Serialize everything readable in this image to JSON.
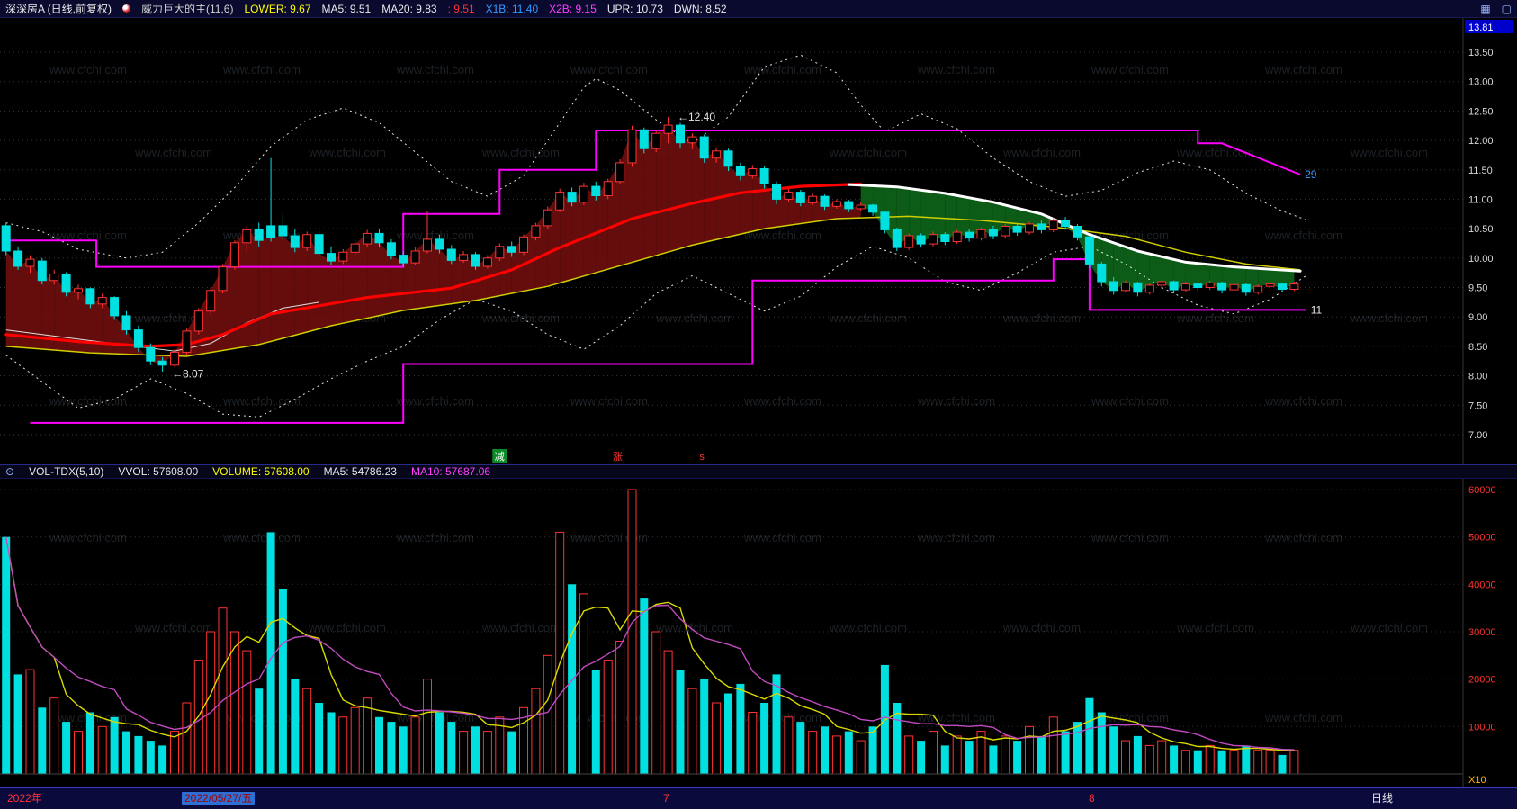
{
  "header": {
    "title": "深深房A (日线,前复权)",
    "indicator": "威力巨大的主(11,6)",
    "lower": "LOWER: 9.67",
    "ma5": "MA5: 9.51",
    "ma20": "MA20: 9.83",
    "extra": ": 9.51",
    "x1b": "X1B: 11.40",
    "x2b": "X2B: 9.15",
    "upr": "UPR: 10.73",
    "dwn": "DWN: 8.52",
    "icon_left": "▦",
    "icon_right": "▢"
  },
  "divider": {
    "collapse_icon": "⊙",
    "name": "VOL-TDX(5,10)",
    "vvol": "VVOL: 57608.00",
    "volume": "VOLUME: 57608.00",
    "ma5": "MA5: 54786.23",
    "ma10": "MA10: 57687.06"
  },
  "bottom_bar": {
    "year": "2022年",
    "date": "2022/05/27/五",
    "month7": "7",
    "month8": "8",
    "period": "日线"
  },
  "watermark": {
    "text": "www.cfchi.com"
  },
  "colors": {
    "up": "#ff3232",
    "down": "#00e0e0",
    "maroon_fill": "#6e0e0e",
    "green_fill": "#0d6318",
    "magenta": "#ff00ff",
    "yellow_line": "#cfcf00",
    "red_line": "#ff0000",
    "white_line": "#ffffff",
    "axis_price": "#d8d8d8",
    "axis_volume": "#ff3232",
    "top_box_bg": "#0000cc"
  },
  "chart_data": {
    "type": "candlestick",
    "title": "深深房A 日线 前复权",
    "period": "日线",
    "price_axis": {
      "top_box": "13.81",
      "ticks": [
        "13.50",
        "13.00",
        "12.50",
        "12.00",
        "11.50",
        "11.00",
        "10.50",
        "10.00",
        "9.50",
        "9.00",
        "8.50",
        "8.00",
        "7.50",
        "7.00"
      ],
      "ylim": [
        6.5,
        13.81
      ]
    },
    "volume_axis": {
      "ticks": [
        60000,
        50000,
        40000,
        30000,
        20000,
        10000
      ],
      "unit": "X10",
      "ylim": [
        0,
        60000
      ]
    },
    "candles": [
      [
        10.55,
        10.6,
        10.05,
        10.12
      ],
      [
        10.12,
        10.2,
        9.8,
        9.86
      ],
      [
        9.86,
        10.05,
        9.75,
        9.98
      ],
      [
        9.95,
        10.0,
        9.55,
        9.62
      ],
      [
        9.62,
        9.8,
        9.55,
        9.73
      ],
      [
        9.73,
        9.76,
        9.35,
        9.42
      ],
      [
        9.42,
        9.55,
        9.3,
        9.48
      ],
      [
        9.48,
        9.5,
        9.15,
        9.22
      ],
      [
        9.22,
        9.4,
        9.15,
        9.33
      ],
      [
        9.33,
        9.35,
        8.95,
        9.02
      ],
      [
        9.02,
        9.1,
        8.7,
        8.78
      ],
      [
        8.78,
        8.85,
        8.4,
        8.48
      ],
      [
        8.48,
        8.55,
        8.18,
        8.25
      ],
      [
        8.25,
        8.32,
        8.07,
        8.18
      ],
      [
        8.18,
        8.45,
        8.15,
        8.4
      ],
      [
        8.4,
        8.8,
        8.35,
        8.76
      ],
      [
        8.76,
        9.15,
        8.7,
        9.1
      ],
      [
        9.1,
        9.5,
        9.05,
        9.45
      ],
      [
        9.45,
        9.9,
        9.4,
        9.85
      ],
      [
        9.85,
        10.3,
        9.8,
        10.26
      ],
      [
        10.26,
        10.55,
        10.1,
        10.48
      ],
      [
        10.48,
        10.6,
        10.2,
        10.3
      ],
      [
        10.55,
        11.7,
        10.28,
        10.35
      ],
      [
        10.55,
        10.75,
        10.3,
        10.38
      ],
      [
        10.38,
        10.5,
        10.1,
        10.18
      ],
      [
        10.18,
        10.45,
        10.12,
        10.4
      ],
      [
        10.4,
        10.45,
        10.02,
        10.08
      ],
      [
        10.08,
        10.2,
        9.88,
        9.95
      ],
      [
        9.95,
        10.15,
        9.9,
        10.1
      ],
      [
        10.1,
        10.3,
        10.05,
        10.24
      ],
      [
        10.24,
        10.48,
        10.18,
        10.42
      ],
      [
        10.42,
        10.5,
        10.18,
        10.26
      ],
      [
        10.26,
        10.32,
        9.98,
        10.05
      ],
      [
        10.05,
        10.12,
        9.85,
        9.92
      ],
      [
        9.92,
        10.18,
        9.88,
        10.12
      ],
      [
        10.12,
        10.8,
        10.08,
        10.32
      ],
      [
        10.32,
        10.4,
        10.08,
        10.15
      ],
      [
        10.15,
        10.22,
        9.9,
        9.96
      ],
      [
        9.96,
        10.12,
        9.92,
        10.06
      ],
      [
        10.06,
        10.1,
        9.8,
        9.86
      ],
      [
        9.86,
        10.05,
        9.82,
        10.0
      ],
      [
        10.0,
        10.25,
        9.95,
        10.2
      ],
      [
        10.2,
        10.28,
        10.02,
        10.1
      ],
      [
        10.1,
        10.4,
        10.05,
        10.36
      ],
      [
        10.36,
        10.6,
        10.3,
        10.55
      ],
      [
        10.55,
        10.88,
        10.5,
        10.82
      ],
      [
        10.82,
        11.18,
        10.78,
        11.12
      ],
      [
        11.12,
        11.2,
        10.88,
        10.95
      ],
      [
        10.95,
        11.28,
        10.9,
        11.22
      ],
      [
        11.22,
        11.3,
        10.98,
        11.06
      ],
      [
        11.06,
        11.35,
        11.0,
        11.3
      ],
      [
        11.3,
        11.68,
        11.25,
        11.62
      ],
      [
        11.62,
        12.25,
        11.55,
        12.18
      ],
      [
        12.18,
        12.22,
        11.78,
        11.86
      ],
      [
        11.86,
        12.18,
        11.8,
        12.12
      ],
      [
        12.12,
        12.4,
        11.95,
        12.26
      ],
      [
        12.26,
        12.3,
        11.88,
        11.96
      ],
      [
        11.96,
        12.12,
        11.85,
        12.06
      ],
      [
        12.06,
        12.1,
        11.62,
        11.7
      ],
      [
        11.7,
        11.88,
        11.62,
        11.82
      ],
      [
        11.82,
        11.86,
        11.48,
        11.56
      ],
      [
        11.56,
        11.62,
        11.32,
        11.4
      ],
      [
        11.4,
        11.58,
        11.35,
        11.52
      ],
      [
        11.52,
        11.56,
        11.18,
        11.26
      ],
      [
        11.26,
        11.3,
        10.92,
        11.0
      ],
      [
        11.0,
        11.18,
        10.95,
        11.12
      ],
      [
        11.12,
        11.16,
        10.88,
        10.94
      ],
      [
        10.94,
        11.1,
        10.9,
        11.05
      ],
      [
        11.05,
        11.08,
        10.82,
        10.88
      ],
      [
        10.88,
        11.0,
        10.84,
        10.96
      ],
      [
        10.96,
        10.99,
        10.78,
        10.84
      ],
      [
        10.84,
        10.95,
        10.8,
        10.9
      ],
      [
        10.9,
        10.92,
        10.72,
        10.78
      ],
      [
        10.78,
        10.8,
        10.42,
        10.48
      ],
      [
        10.48,
        10.52,
        10.12,
        10.18
      ],
      [
        10.18,
        10.42,
        10.14,
        10.38
      ],
      [
        10.38,
        10.42,
        10.18,
        10.24
      ],
      [
        10.24,
        10.45,
        10.2,
        10.4
      ],
      [
        10.4,
        10.44,
        10.22,
        10.28
      ],
      [
        10.28,
        10.48,
        10.24,
        10.44
      ],
      [
        10.44,
        10.5,
        10.28,
        10.34
      ],
      [
        10.34,
        10.52,
        10.3,
        10.48
      ],
      [
        10.48,
        10.55,
        10.32,
        10.38
      ],
      [
        10.38,
        10.58,
        10.34,
        10.54
      ],
      [
        10.54,
        10.6,
        10.38,
        10.44
      ],
      [
        10.44,
        10.62,
        10.4,
        10.58
      ],
      [
        10.58,
        10.64,
        10.42,
        10.48
      ],
      [
        10.48,
        10.68,
        10.44,
        10.64
      ],
      [
        10.64,
        10.7,
        10.48,
        10.54
      ],
      [
        10.54,
        10.58,
        10.3,
        10.36
      ],
      [
        10.36,
        10.38,
        9.82,
        9.9
      ],
      [
        9.9,
        9.94,
        9.52,
        9.6
      ],
      [
        9.6,
        9.68,
        9.38,
        9.45
      ],
      [
        9.45,
        9.62,
        9.42,
        9.58
      ],
      [
        9.58,
        9.6,
        9.35,
        9.42
      ],
      [
        9.42,
        9.58,
        9.38,
        9.54
      ],
      [
        9.54,
        9.64,
        9.48,
        9.6
      ],
      [
        9.6,
        9.62,
        9.4,
        9.46
      ],
      [
        9.46,
        9.6,
        9.42,
        9.56
      ],
      [
        9.56,
        9.58,
        9.44,
        9.5
      ],
      [
        9.5,
        9.62,
        9.46,
        9.58
      ],
      [
        9.58,
        9.6,
        9.4,
        9.46
      ],
      [
        9.46,
        9.58,
        9.42,
        9.55
      ],
      [
        9.55,
        9.57,
        9.36,
        9.42
      ],
      [
        9.42,
        9.55,
        9.38,
        9.52
      ],
      [
        9.52,
        9.6,
        9.45,
        9.56
      ],
      [
        9.56,
        9.58,
        9.42,
        9.47
      ],
      [
        9.47,
        9.6,
        9.44,
        9.56
      ]
    ],
    "volumes": [
      50000,
      21000,
      22000,
      14000,
      16000,
      11000,
      9000,
      13000,
      10000,
      12000,
      9000,
      8000,
      7000,
      6000,
      9000,
      15000,
      24000,
      30000,
      35000,
      30000,
      26000,
      18000,
      51000,
      39000,
      20000,
      18000,
      15000,
      13000,
      12000,
      14000,
      16000,
      12000,
      11000,
      10000,
      12000,
      20000,
      13000,
      11000,
      9000,
      10000,
      9000,
      12000,
      9000,
      14000,
      18000,
      25000,
      51000,
      40000,
      38000,
      22000,
      24000,
      28000,
      60000,
      37000,
      30000,
      26000,
      22000,
      18000,
      20000,
      15000,
      17000,
      19000,
      13000,
      15000,
      21000,
      12000,
      11000,
      9000,
      10000,
      8000,
      9000,
      7000,
      10000,
      23000,
      15000,
      8000,
      7000,
      9000,
      6000,
      8000,
      7000,
      9000,
      6000,
      8000,
      7000,
      10000,
      8000,
      12000,
      9000,
      11000,
      16000,
      13000,
      10000,
      7000,
      8000,
      6000,
      7000,
      6000,
      5000,
      5000,
      6000,
      5000,
      5000,
      6000,
      5000,
      5000,
      4000,
      5000
    ],
    "overlays": {
      "trend_split_index": 71,
      "x1b_value": "11.40",
      "x1b_label": "29",
      "x1b_points": [
        [
          0,
          10.3
        ],
        [
          7.5,
          10.3
        ],
        [
          7.5,
          9.85
        ],
        [
          33,
          9.85
        ],
        [
          33,
          10.75
        ],
        [
          41,
          10.75
        ],
        [
          41,
          11.5
        ],
        [
          49,
          11.5
        ],
        [
          49,
          12.17
        ],
        [
          99,
          12.17
        ],
        [
          99,
          11.95
        ],
        [
          101,
          11.95
        ],
        [
          107.5,
          11.42
        ]
      ],
      "x2b_value": "9.15",
      "x2b_label": "11",
      "x2b_points": [
        [
          2,
          7.2
        ],
        [
          33,
          7.2
        ],
        [
          33,
          8.2
        ],
        [
          62,
          8.2
        ],
        [
          62,
          9.62
        ],
        [
          87,
          9.62
        ],
        [
          87,
          9.98
        ],
        [
          90,
          9.98
        ],
        [
          90,
          9.12
        ],
        [
          108,
          9.12
        ]
      ],
      "red_line": [
        [
          0,
          8.7
        ],
        [
          6,
          8.58
        ],
        [
          12,
          8.5
        ],
        [
          15,
          8.53
        ],
        [
          18,
          8.7
        ],
        [
          22,
          9.05
        ],
        [
          30,
          9.33
        ],
        [
          37,
          9.49
        ],
        [
          42,
          9.8
        ],
        [
          46,
          10.18
        ],
        [
          52,
          10.67
        ],
        [
          57,
          10.93
        ],
        [
          61,
          11.11
        ],
        [
          66,
          11.22
        ],
        [
          71,
          11.26
        ]
      ],
      "white_line": [
        [
          70,
          11.25
        ],
        [
          74,
          11.21
        ],
        [
          78,
          11.1
        ],
        [
          82,
          10.95
        ],
        [
          86,
          10.75
        ],
        [
          90,
          10.4
        ],
        [
          94,
          10.12
        ],
        [
          98,
          9.93
        ],
        [
          102,
          9.85
        ],
        [
          107.5,
          9.78
        ]
      ],
      "yellow_line": [
        [
          0,
          8.5
        ],
        [
          7,
          8.39
        ],
        [
          15,
          8.33
        ],
        [
          21,
          8.53
        ],
        [
          27,
          8.85
        ],
        [
          33,
          9.11
        ],
        [
          39,
          9.28
        ],
        [
          45,
          9.52
        ],
        [
          51,
          9.87
        ],
        [
          57,
          10.22
        ],
        [
          63,
          10.5
        ],
        [
          69,
          10.67
        ],
        [
          75,
          10.71
        ],
        [
          81,
          10.64
        ],
        [
          87,
          10.53
        ],
        [
          93,
          10.37
        ],
        [
          98,
          10.1
        ],
        [
          103,
          9.9
        ],
        [
          107.5,
          9.8
        ]
      ],
      "thin_white_line": [
        [
          0,
          8.78
        ],
        [
          5,
          8.65
        ],
        [
          10,
          8.52
        ],
        [
          14,
          8.42
        ],
        [
          17,
          8.55
        ],
        [
          20,
          8.9
        ],
        [
          23,
          9.15
        ],
        [
          26,
          9.25
        ]
      ],
      "upper_band": [
        [
          0,
          10.6
        ],
        [
          3,
          10.45
        ],
        [
          6,
          10.15
        ],
        [
          10,
          10.0
        ],
        [
          13,
          10.1
        ],
        [
          16,
          10.6
        ],
        [
          19,
          11.2
        ],
        [
          22,
          11.9
        ],
        [
          25,
          12.35
        ],
        [
          28,
          12.55
        ],
        [
          31,
          12.3
        ],
        [
          34,
          11.8
        ],
        [
          37,
          11.3
        ],
        [
          40,
          11.05
        ],
        [
          43,
          11.4
        ],
        [
          46,
          12.3
        ],
        [
          48,
          12.9
        ],
        [
          49,
          13.05
        ],
        [
          51,
          12.85
        ],
        [
          54,
          12.35
        ],
        [
          57,
          11.95
        ],
        [
          60,
          12.4
        ],
        [
          63,
          13.25
        ],
        [
          66,
          13.45
        ],
        [
          69,
          13.15
        ],
        [
          71,
          12.6
        ],
        [
          73,
          12.15
        ],
        [
          76,
          12.45
        ],
        [
          79,
          12.2
        ],
        [
          82,
          11.7
        ],
        [
          85,
          11.3
        ],
        [
          88,
          11.05
        ],
        [
          91,
          11.15
        ],
        [
          94,
          11.45
        ],
        [
          97,
          11.65
        ],
        [
          100,
          11.5
        ],
        [
          103,
          11.1
        ],
        [
          106,
          10.8
        ],
        [
          108,
          10.65
        ]
      ],
      "lower_band": [
        [
          0,
          8.35
        ],
        [
          3,
          7.9
        ],
        [
          6,
          7.45
        ],
        [
          9,
          7.6
        ],
        [
          12,
          7.95
        ],
        [
          15,
          7.7
        ],
        [
          18,
          7.35
        ],
        [
          21,
          7.3
        ],
        [
          24,
          7.6
        ],
        [
          27,
          7.95
        ],
        [
          30,
          8.25
        ],
        [
          33,
          8.5
        ],
        [
          36,
          8.95
        ],
        [
          39,
          9.3
        ],
        [
          42,
          9.1
        ],
        [
          45,
          8.7
        ],
        [
          48,
          8.45
        ],
        [
          51,
          8.85
        ],
        [
          54,
          9.4
        ],
        [
          57,
          9.7
        ],
        [
          60,
          9.4
        ],
        [
          63,
          9.1
        ],
        [
          66,
          9.35
        ],
        [
          69,
          9.85
        ],
        [
          72,
          10.2
        ],
        [
          75,
          10.0
        ],
        [
          78,
          9.6
        ],
        [
          81,
          9.45
        ],
        [
          84,
          9.75
        ],
        [
          87,
          10.1
        ],
        [
          90,
          10.2
        ],
        [
          93,
          9.9
        ],
        [
          96,
          9.5
        ],
        [
          99,
          9.2
        ],
        [
          102,
          9.05
        ],
        [
          105,
          9.3
        ],
        [
          108,
          9.7
        ]
      ]
    },
    "annotations": [
      {
        "text": "←12.40",
        "i": 55.4,
        "price": 12.4
      },
      {
        "text": "←8.07",
        "i": 13.4,
        "price": 8.03
      }
    ],
    "markers": [
      {
        "text": "减",
        "i": 41.0,
        "type": "green-box"
      },
      {
        "text": "涨",
        "i": 50.8,
        "type": "red-text"
      },
      {
        "text": "s",
        "i": 57.8,
        "type": "red-text"
      }
    ]
  }
}
